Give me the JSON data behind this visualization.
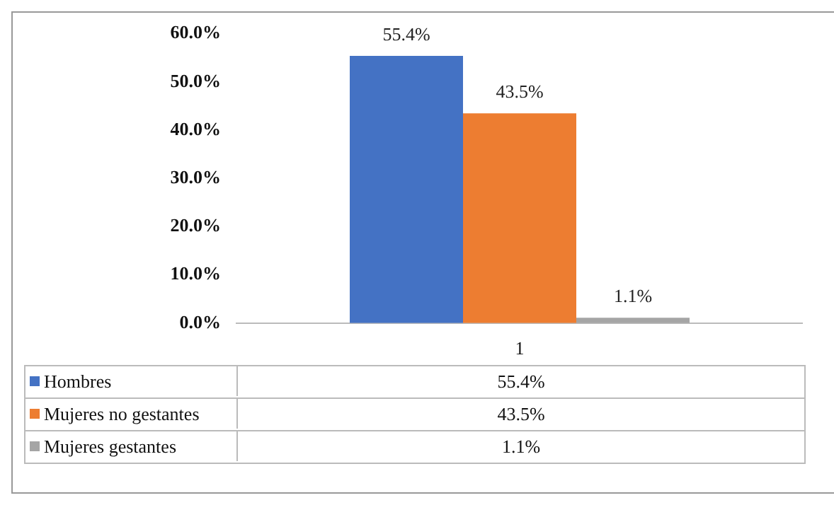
{
  "chart_data": {
    "type": "bar",
    "categories": [
      "1"
    ],
    "series": [
      {
        "name": "Hombres",
        "color": "#4472c4",
        "values": [
          55.4
        ],
        "value_labels": [
          "55.4%"
        ]
      },
      {
        "name": "Mujeres no gestantes",
        "color": "#ed7d31",
        "values": [
          43.5
        ],
        "value_labels": [
          "43.5%"
        ]
      },
      {
        "name": "Mujeres gestantes",
        "color": "#a5a5a5",
        "values": [
          1.1
        ],
        "value_labels": [
          "1.1%"
        ]
      }
    ],
    "ylim": [
      0,
      60
    ],
    "yticks": [
      {
        "value": 0,
        "label": "0.0%"
      },
      {
        "value": 10,
        "label": "10.0%"
      },
      {
        "value": 20,
        "label": "20.0%"
      },
      {
        "value": 30,
        "label": "30.0%"
      },
      {
        "value": 40,
        "label": "40.0%"
      },
      {
        "value": 50,
        "label": "50.0%"
      },
      {
        "value": 60,
        "label": "60.0%"
      }
    ],
    "grid": false,
    "legend": "bottom"
  }
}
